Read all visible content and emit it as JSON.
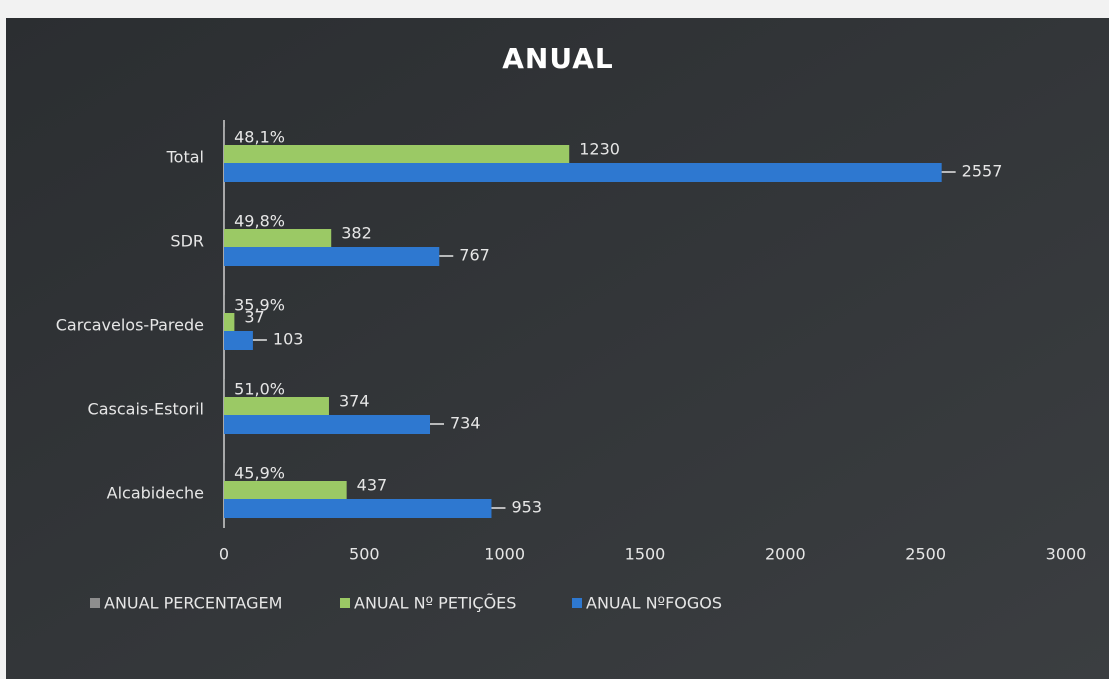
{
  "chart_data": {
    "type": "bar",
    "orientation": "horizontal",
    "title": "ANUAL",
    "categories": [
      "Total",
      "SDR",
      "Carcavelos-Parede",
      "Cascais-Estoril",
      "Alcabideche"
    ],
    "series": [
      {
        "name": "ANUAL PERCENTAGEM",
        "color": "#8e8e8e",
        "values": [
          0.481,
          0.498,
          0.359,
          0.51,
          0.459
        ],
        "value_labels": [
          "48,1%",
          "49,8%",
          "35,9%",
          "51,0%",
          "45,9%"
        ]
      },
      {
        "name": "ANUAL Nº PETIÇÕES",
        "color": "#9bc965",
        "values": [
          1230,
          382,
          37,
          374,
          437
        ]
      },
      {
        "name": "ANUAL NºFOGOS",
        "color": "#2e78d0",
        "values": [
          2557,
          767,
          103,
          734,
          953
        ]
      }
    ],
    "xlim": [
      0,
      3000
    ],
    "xticks": [
      0,
      500,
      1000,
      1500,
      2000,
      2500,
      3000
    ],
    "grid": false,
    "legend": "bottom"
  }
}
